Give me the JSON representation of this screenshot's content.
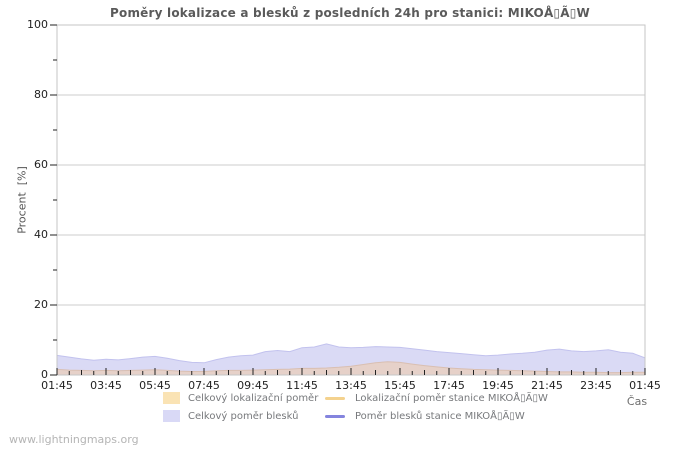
{
  "page": {
    "watermark": "www.lightningmaps.org"
  },
  "chart_data": {
    "type": "area",
    "title": "Poměry lokalizace a blesků z posledních 24h pro stanici: MIKOÅ▯Ã▯W",
    "station_name": "MIKOÅ▯Ã▯W",
    "xlabel": "Čas",
    "ylabel": "Procent  [%]",
    "ylim": [
      0,
      100
    ],
    "y_ticks": [
      0,
      20,
      40,
      60,
      80,
      100
    ],
    "y_minor_step": 10,
    "x_start": "01:45",
    "x_step_minutes": 30,
    "x_tick_labels": [
      "01:45",
      "03:45",
      "05:45",
      "07:45",
      "09:45",
      "11:45",
      "13:45",
      "15:45",
      "17:45",
      "19:45",
      "21:45",
      "23:45",
      "01:45"
    ],
    "grid": "horizontal major gridlines only",
    "legend_position": "bottom",
    "style": {
      "grid_color": "#cccccc",
      "border_color": "#c6c6c6",
      "tick_color": "#222222",
      "title_color": "#5a5a5a"
    },
    "series": [
      {
        "name": "Celkový lokalizační poměr",
        "type": "area",
        "color": "#fae3b4",
        "render_fill": "#e6d1c9",
        "edge_color": "#d9bfb2",
        "values": [
          1.6,
          1.4,
          1.3,
          1.2,
          1.3,
          1.2,
          1.3,
          1.4,
          1.5,
          1.3,
          1.1,
          1.0,
          1.0,
          1.2,
          1.3,
          1.3,
          1.4,
          1.5,
          1.6,
          1.7,
          1.9,
          1.9,
          2.0,
          2.2,
          2.5,
          3.0,
          3.5,
          3.8,
          3.6,
          3.1,
          2.7,
          2.3,
          2.0,
          1.8,
          1.6,
          1.5,
          1.4,
          1.3,
          1.2,
          1.1,
          1.0,
          0.9,
          0.9,
          0.8,
          0.8,
          0.7,
          0.7,
          0.8,
          0.8
        ]
      },
      {
        "name": "Celkový poměr blesků",
        "type": "area",
        "color": "#d9d9f6",
        "render_fill": "#dadaf5",
        "edge_color": "#c2c2ee",
        "values": [
          5.6,
          5.1,
          4.6,
          4.2,
          4.5,
          4.3,
          4.7,
          5.1,
          5.3,
          4.8,
          4.1,
          3.6,
          3.5,
          4.4,
          5.1,
          5.5,
          5.7,
          6.7,
          7.0,
          6.7,
          7.8,
          8.0,
          8.9,
          8.0,
          7.8,
          7.9,
          8.1,
          8.0,
          7.9,
          7.5,
          7.1,
          6.7,
          6.4,
          6.1,
          5.8,
          5.5,
          5.7,
          6.0,
          6.2,
          6.5,
          7.1,
          7.4,
          6.9,
          6.7,
          6.9,
          7.2,
          6.5,
          6.2,
          4.9
        ]
      },
      {
        "name": "Lokalizační poměr stanice MIKOÅ▯Ã▯W",
        "type": "line",
        "color": "#f4d28e",
        "values": []
      },
      {
        "name": "Poměr blesků stanice MIKOÅ▯Ã▯W",
        "type": "line",
        "color": "#8484de",
        "values": []
      }
    ]
  }
}
